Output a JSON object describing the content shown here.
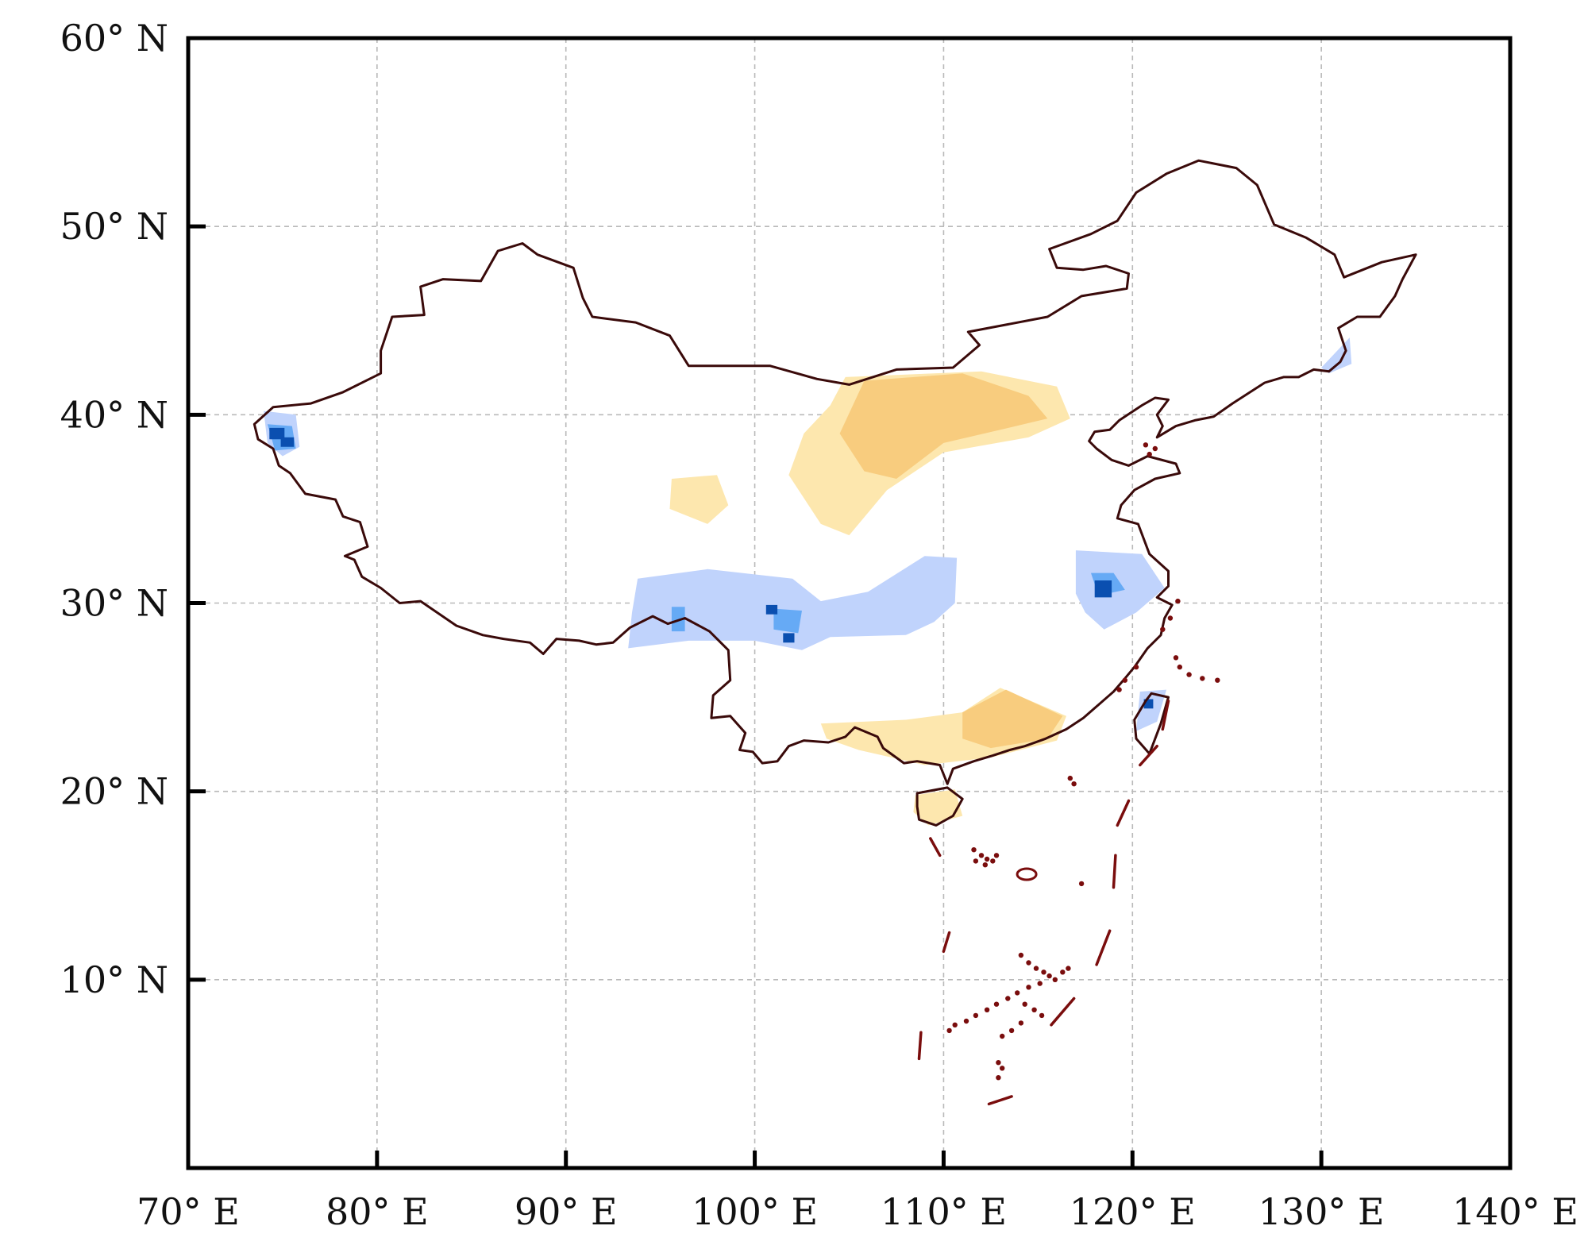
{
  "map": {
    "x_ticks": [
      {
        "lon": 70,
        "label": "70° E"
      },
      {
        "lon": 80,
        "label": "80° E"
      },
      {
        "lon": 90,
        "label": "90° E"
      },
      {
        "lon": 100,
        "label": "100° E"
      },
      {
        "lon": 110,
        "label": "110° E"
      },
      {
        "lon": 120,
        "label": "120° E"
      },
      {
        "lon": 130,
        "label": "130° E"
      },
      {
        "lon": 140,
        "label": "140° E"
      }
    ],
    "y_ticks": [
      {
        "lat": 10,
        "label": "10° N"
      },
      {
        "lat": 20,
        "label": "20° N"
      },
      {
        "lat": 30,
        "label": "30° N"
      },
      {
        "lat": 40,
        "label": "40° N"
      },
      {
        "lat": 50,
        "label": "50° N"
      },
      {
        "lat": 60,
        "label": "60° N"
      }
    ],
    "lon_range": [
      70,
      140
    ],
    "lat_range": [
      0,
      60
    ],
    "grid": true,
    "colors": {
      "border": "#3a0a0a",
      "islands": "#7a0d0d",
      "light_yellow": "#fde7ae",
      "medium_orange": "#f8cc7e",
      "light_blue": "#c0d3fc",
      "medium_blue": "#66aaf5",
      "dark_blue": "#0a4fb0"
    }
  },
  "chart_data": {
    "type": "heatmap",
    "lon_range": [
      70,
      140
    ],
    "lat_range": [
      0,
      60
    ],
    "grid": true,
    "anomaly_regions": [
      {
        "class": "light_yellow",
        "polygon": [
          [
            104.8,
            42
          ],
          [
            112,
            42.3
          ],
          [
            116,
            41.5
          ],
          [
            116.7,
            39.8
          ],
          [
            114.5,
            38.8
          ],
          [
            110,
            38
          ],
          [
            107,
            36
          ],
          [
            105,
            33.6
          ],
          [
            103.5,
            34.2
          ],
          [
            101.8,
            36.8
          ],
          [
            102.6,
            39
          ],
          [
            104,
            40.5
          ]
        ]
      },
      {
        "class": "light_yellow",
        "polygon": [
          [
            95.6,
            36.6
          ],
          [
            98,
            36.8
          ],
          [
            98.6,
            35.2
          ],
          [
            97.5,
            34.2
          ],
          [
            95.5,
            35
          ]
        ]
      },
      {
        "class": "medium_orange",
        "polygon": [
          [
            105.8,
            41.8
          ],
          [
            111,
            42.2
          ],
          [
            114.5,
            41
          ],
          [
            115.5,
            39.8
          ],
          [
            113,
            39.2
          ],
          [
            110,
            38.5
          ],
          [
            107.5,
            36.6
          ],
          [
            105.8,
            37
          ],
          [
            104.5,
            39
          ]
        ]
      },
      {
        "class": "light_yellow",
        "polygon": [
          [
            103.5,
            23.6
          ],
          [
            108,
            23.8
          ],
          [
            111,
            24.2
          ],
          [
            113,
            25.5
          ],
          [
            116.5,
            24
          ],
          [
            116,
            22.7
          ],
          [
            112.5,
            21.8
          ],
          [
            109,
            21.4
          ],
          [
            105.5,
            22.2
          ],
          [
            103.8,
            22.8
          ]
        ]
      },
      {
        "class": "medium_orange",
        "polygon": [
          [
            111,
            24.2
          ],
          [
            113.3,
            25.4
          ],
          [
            116.3,
            24
          ],
          [
            115.5,
            22.8
          ],
          [
            112.5,
            22.3
          ],
          [
            111,
            22.8
          ]
        ]
      },
      {
        "class": "light_yellow",
        "polygon": [
          [
            108.5,
            19.8
          ],
          [
            110.6,
            20.1
          ],
          [
            111,
            18.7
          ],
          [
            109.2,
            18.2
          ],
          [
            108.4,
            18.9
          ]
        ]
      },
      {
        "class": "light_blue",
        "polygon": [
          [
            93.8,
            31.3
          ],
          [
            97.5,
            31.8
          ],
          [
            102,
            31.3
          ],
          [
            103.5,
            30.1
          ],
          [
            106,
            30.6
          ],
          [
            109,
            32.5
          ],
          [
            110.7,
            32.4
          ],
          [
            110.6,
            30
          ],
          [
            109.5,
            29
          ],
          [
            108,
            28.3
          ],
          [
            104,
            28.2
          ],
          [
            102.5,
            27.5
          ],
          [
            100,
            28
          ],
          [
            96.5,
            28
          ],
          [
            93.3,
            27.6
          ],
          [
            93.5,
            29.5
          ]
        ]
      },
      {
        "class": "light_blue",
        "polygon": [
          [
            117,
            32.8
          ],
          [
            120.5,
            32.6
          ],
          [
            121.7,
            30.8
          ],
          [
            120.2,
            29.5
          ],
          [
            118.5,
            28.6
          ],
          [
            117.5,
            29.5
          ],
          [
            117,
            30.5
          ]
        ]
      },
      {
        "class": "light_blue",
        "polygon": [
          [
            74,
            40.2
          ],
          [
            75.7,
            40
          ],
          [
            75.9,
            38.3
          ],
          [
            75,
            37.8
          ],
          [
            74.2,
            38.5
          ]
        ]
      },
      {
        "class": "light_blue",
        "polygon": [
          [
            130,
            42.5
          ],
          [
            131.5,
            44.1
          ],
          [
            131.6,
            42.7
          ],
          [
            130.4,
            42.2
          ]
        ]
      },
      {
        "class": "light_blue",
        "polygon": [
          [
            120.4,
            25.3
          ],
          [
            121.8,
            25.4
          ],
          [
            121.3,
            23.7
          ],
          [
            120.2,
            23.2
          ]
        ]
      },
      {
        "class": "medium_blue",
        "polygon": [
          [
            74.2,
            39.5
          ],
          [
            75.5,
            39.4
          ],
          [
            75.7,
            38.2
          ],
          [
            74.6,
            38.1
          ]
        ]
      },
      {
        "class": "medium_blue",
        "polygon": [
          [
            117.8,
            31.6
          ],
          [
            119,
            31.6
          ],
          [
            119.6,
            30.7
          ],
          [
            118.2,
            30.4
          ]
        ]
      },
      {
        "class": "medium_blue",
        "polygon": [
          [
            101,
            29.7
          ],
          [
            102.5,
            29.6
          ],
          [
            102.3,
            28.4
          ],
          [
            101,
            28.6
          ]
        ]
      },
      {
        "class": "medium_blue",
        "polygon": [
          [
            95.6,
            29.8
          ],
          [
            96.3,
            29.8
          ],
          [
            96.3,
            28.5
          ],
          [
            95.6,
            28.5
          ]
        ]
      },
      {
        "class": "dark_blue",
        "polygon": [
          [
            118,
            31.2
          ],
          [
            118.9,
            31.2
          ],
          [
            118.9,
            30.3
          ],
          [
            118,
            30.3
          ]
        ]
      },
      {
        "class": "dark_blue",
        "polygon": [
          [
            74.3,
            39.3
          ],
          [
            75.1,
            39.3
          ],
          [
            75.1,
            38.7
          ],
          [
            74.3,
            38.7
          ]
        ]
      },
      {
        "class": "dark_blue",
        "polygon": [
          [
            74.9,
            38.8
          ],
          [
            75.6,
            38.8
          ],
          [
            75.6,
            38.3
          ],
          [
            74.9,
            38.3
          ]
        ]
      },
      {
        "class": "dark_blue",
        "polygon": [
          [
            100.6,
            29.9
          ],
          [
            101.2,
            29.9
          ],
          [
            101.2,
            29.4
          ],
          [
            100.6,
            29.4
          ]
        ]
      },
      {
        "class": "dark_blue",
        "polygon": [
          [
            101.5,
            28.4
          ],
          [
            102.1,
            28.4
          ],
          [
            102.1,
            27.9
          ],
          [
            101.5,
            27.9
          ]
        ]
      },
      {
        "class": "dark_blue",
        "polygon": [
          [
            120.6,
            24.9
          ],
          [
            121.1,
            24.9
          ],
          [
            121.1,
            24.4
          ],
          [
            120.6,
            24.4
          ]
        ]
      }
    ]
  }
}
